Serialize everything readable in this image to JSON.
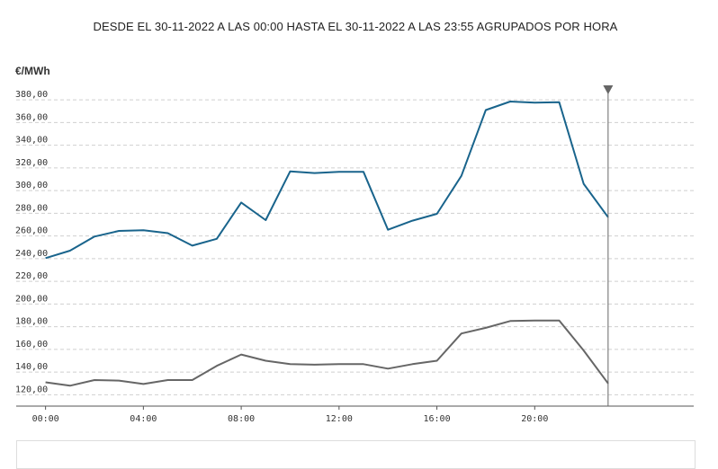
{
  "header": {
    "title": "DESDE EL 30-11-2022 A LAS 00:00 HASTA EL 30-11-2022 A LAS 23:55 AGRUPADOS POR HORA",
    "unit": "€/MWh"
  },
  "chart_data": {
    "type": "line",
    "title": "DESDE EL 30-11-2022 A LAS 00:00 HASTA EL 30-11-2022 A LAS 23:55 AGRUPADOS POR HORA",
    "xlabel": "",
    "ylabel": "€/MWh",
    "x": [
      "00:00",
      "01:00",
      "02:00",
      "03:00",
      "04:00",
      "05:00",
      "06:00",
      "07:00",
      "08:00",
      "09:00",
      "10:00",
      "11:00",
      "12:00",
      "13:00",
      "14:00",
      "15:00",
      "16:00",
      "17:00",
      "18:00",
      "19:00",
      "20:00",
      "21:00",
      "22:00",
      "23:00"
    ],
    "xticks": [
      "00:00",
      "04:00",
      "08:00",
      "12:00",
      "16:00",
      "20:00"
    ],
    "xlim": [
      -1.2,
      26.5
    ],
    "ylim": [
      110,
      392
    ],
    "yticks": [
      120,
      140,
      160,
      180,
      200,
      220,
      240,
      260,
      280,
      300,
      320,
      340,
      360,
      380
    ],
    "ytick_labels": [
      "120,00",
      "140,00",
      "160,00",
      "180,00",
      "200,00",
      "220,00",
      "240,00",
      "260,00",
      "280,00",
      "300,00",
      "320,00",
      "340,00",
      "360,00",
      "380,00"
    ],
    "grid": true,
    "series": [
      {
        "color": "#19648c",
        "values": [
          240.5,
          247,
          259.5,
          264.5,
          265,
          262.5,
          251.5,
          257.5,
          289.5,
          274,
          317,
          315.5,
          316.5,
          316.5,
          265.5,
          273.5,
          279.5,
          313,
          371,
          378.5,
          377.5,
          378,
          306,
          276.5
        ]
      },
      {
        "color": "#666666",
        "values": [
          131,
          128,
          133,
          132.5,
          129.5,
          133,
          133,
          145.5,
          155.5,
          150,
          147,
          146.5,
          147,
          147,
          143,
          147,
          150,
          174,
          179,
          185,
          185.5,
          185.5,
          159,
          130
        ]
      }
    ],
    "cursor_x": "23:00"
  }
}
